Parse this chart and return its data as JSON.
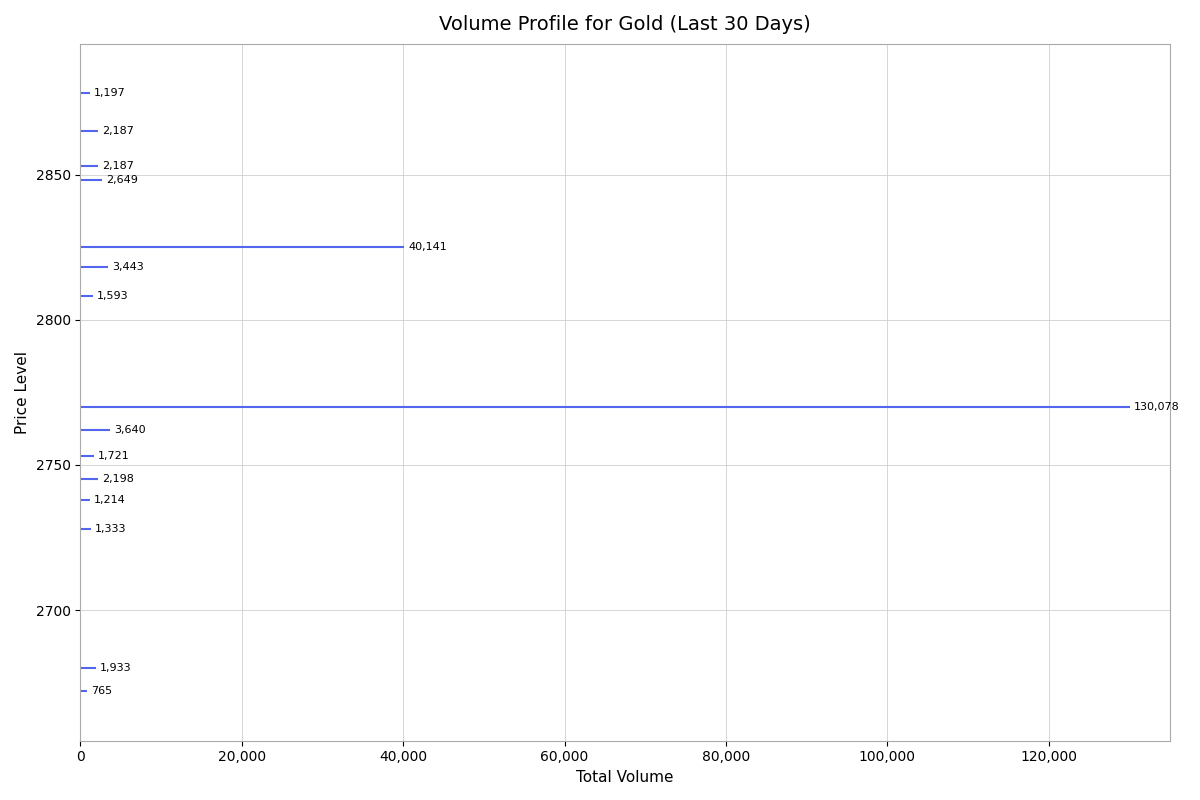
{
  "title": "Volume Profile for Gold (Last 30 Days)",
  "xlabel": "Total Volume",
  "ylabel": "Price Level",
  "price_levels": [
    2878,
    2865,
    2853,
    2848,
    2825,
    2818,
    2808,
    2770,
    2762,
    2753,
    2745,
    2738,
    2728,
    2680,
    2672
  ],
  "volumes": [
    1197,
    2187,
    2187,
    2649,
    40141,
    3443,
    1593,
    130078,
    3640,
    1721,
    2198,
    1214,
    1333,
    1933,
    765
  ],
  "bar_color": "#5566ee",
  "background_color": "#ffffff",
  "grid_color": "#cccccc",
  "xlim": [
    0,
    135000
  ],
  "ylim": [
    2655,
    2895
  ],
  "yticks": [
    2700,
    2750,
    2800,
    2850
  ],
  "title_fontsize": 14,
  "label_fontsize": 11,
  "tick_fontsize": 10,
  "line_width": 1.5
}
